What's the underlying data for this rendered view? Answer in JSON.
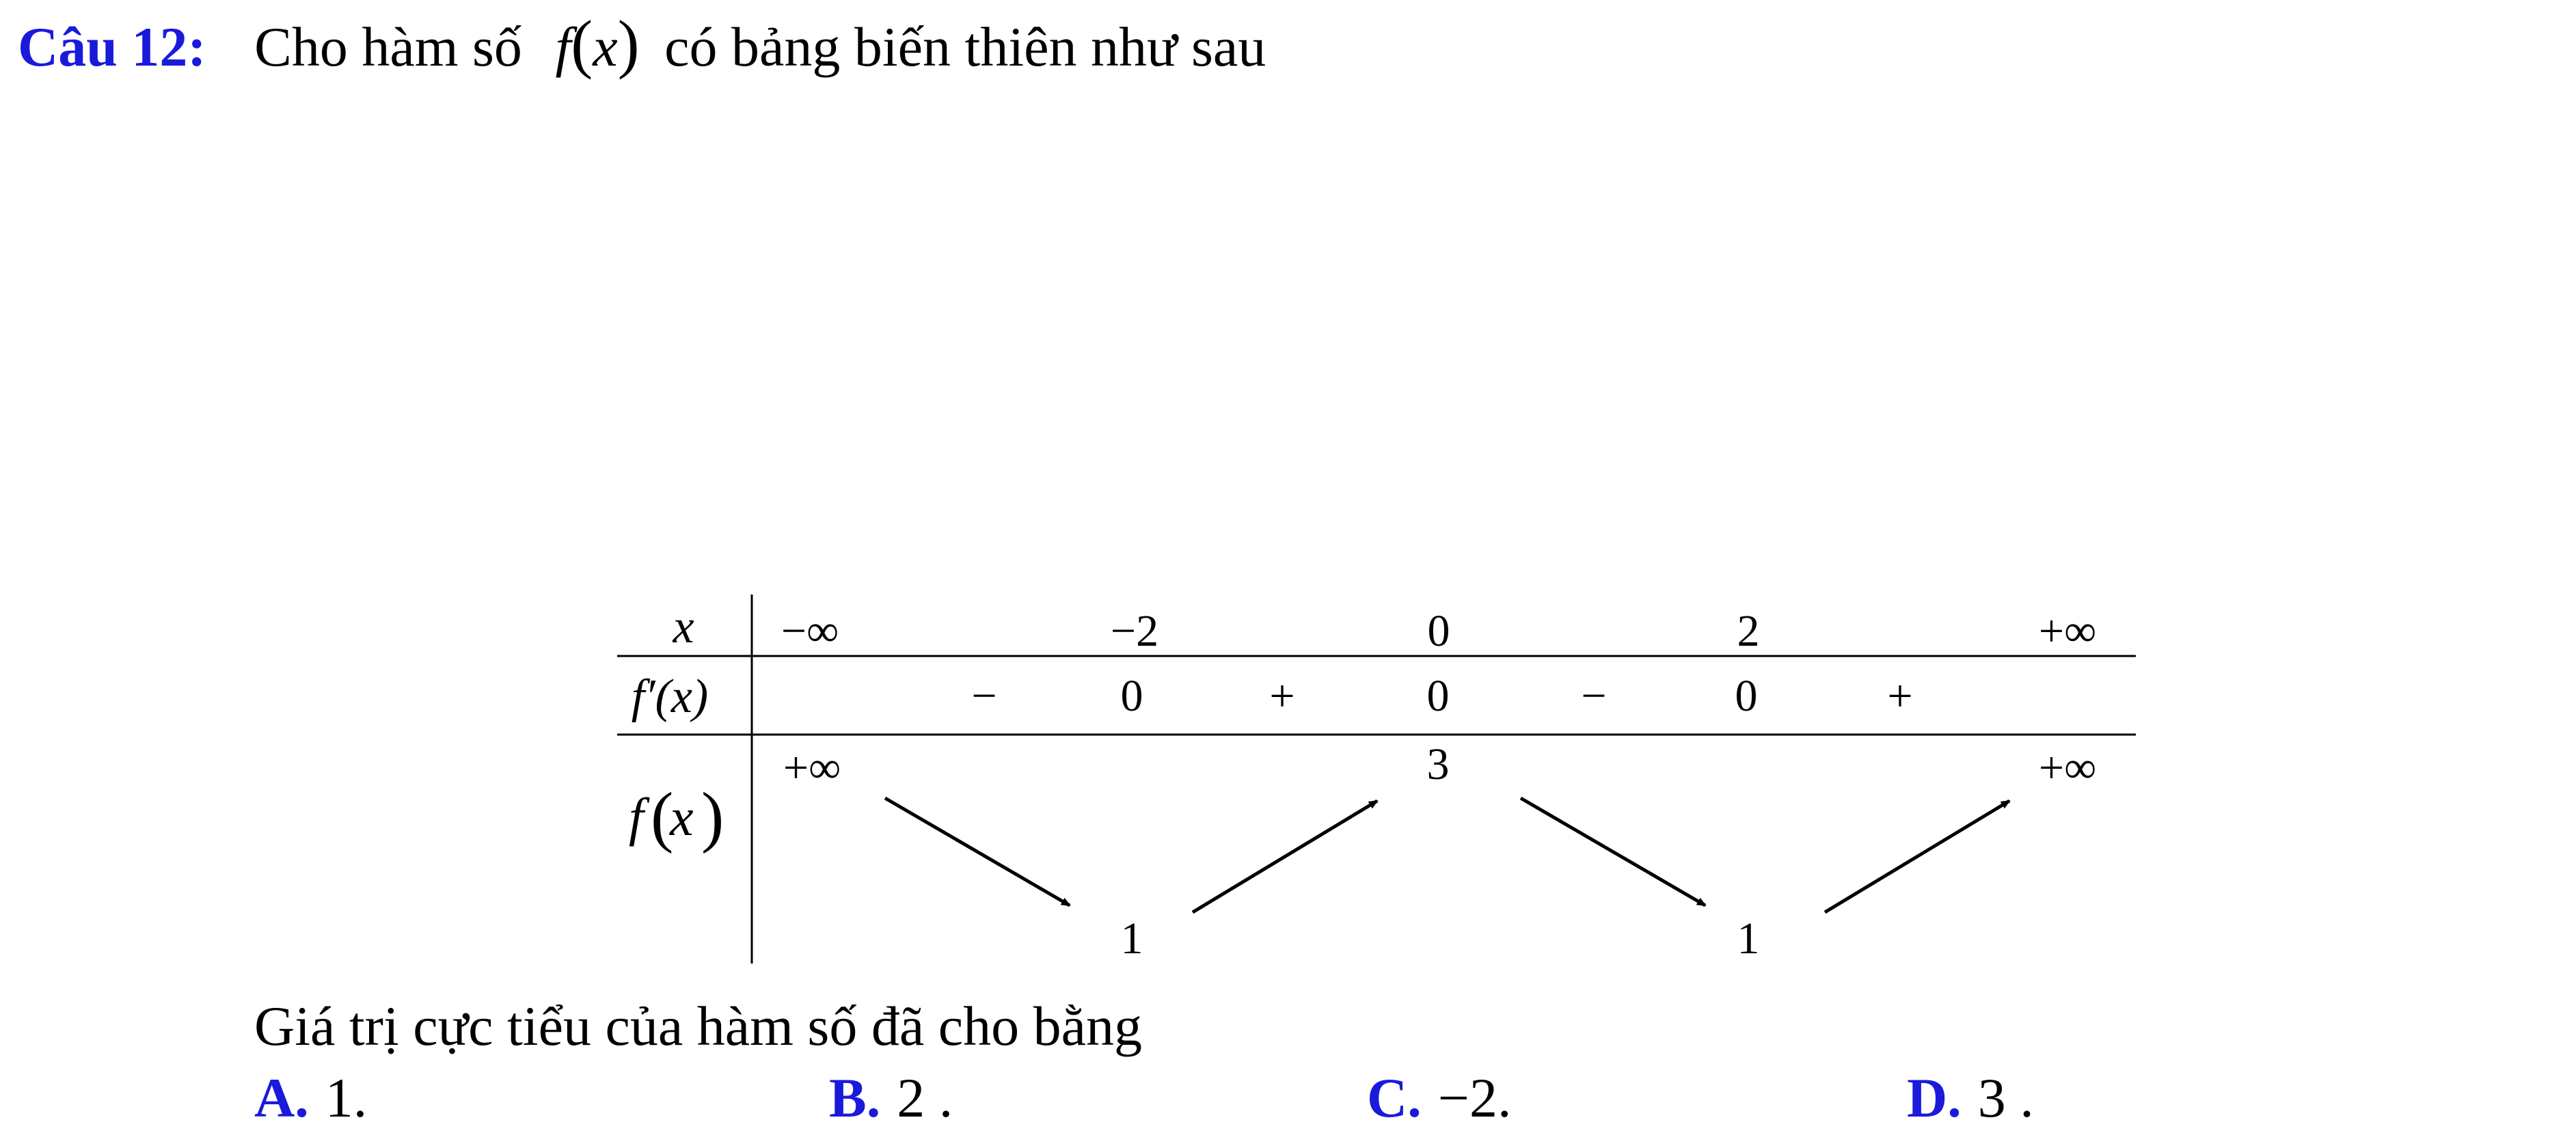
{
  "question": {
    "label": "Câu 12:",
    "text_before": "Cho hàm số",
    "func_name": "f",
    "func_var": "x",
    "text_after": "có bảng biến thiên như sau"
  },
  "table": {
    "row_labels": {
      "x": "x",
      "fprime": "f′(x)",
      "f_name": "f",
      "f_var": "x"
    },
    "x_values": [
      "−∞",
      "−2",
      "0",
      "2",
      "+∞"
    ],
    "fprime_values": [
      "−",
      "0",
      "+",
      "0",
      "−",
      "0",
      "+"
    ],
    "f_values": [
      "+∞",
      "1",
      "3",
      "1",
      "+∞"
    ]
  },
  "statement": "Giá trị cực tiểu của hàm số đã cho bằng",
  "options": [
    {
      "label": "A.",
      "value": "1."
    },
    {
      "label": "B.",
      "value": "2 ."
    },
    {
      "label": "C.",
      "value": "−2."
    },
    {
      "label": "D.",
      "value": "3 ."
    }
  ],
  "colors": {
    "accent": "#1a1adb",
    "text": "#000000"
  }
}
